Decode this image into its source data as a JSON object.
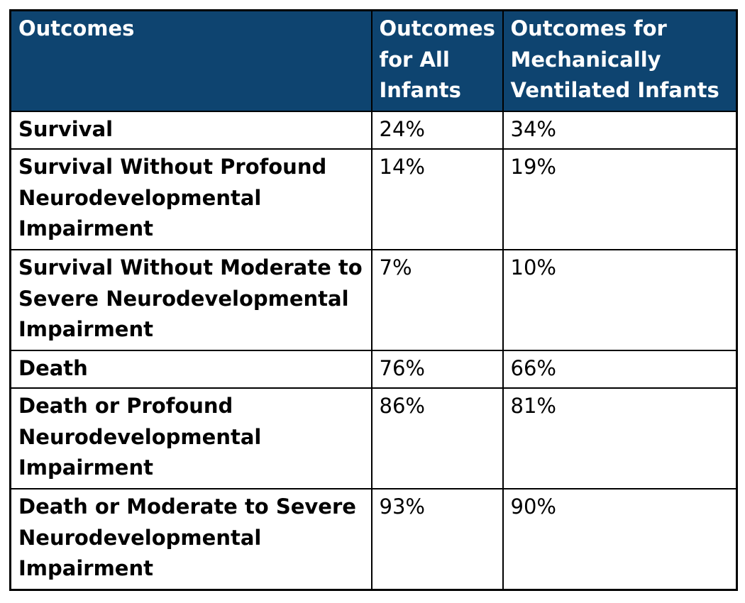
{
  "colors": {
    "header_bg": "#0E4470",
    "header_text": "#FFFFFF",
    "body_text": "#000000",
    "border": "#000000"
  },
  "chart_data": {
    "type": "table",
    "columns": [
      {
        "label": "Outcomes"
      },
      {
        "label": "Outcomes for All Infants"
      },
      {
        "label": "Outcomes for Mechanically Ventilated Infants"
      }
    ],
    "rows": [
      {
        "outcome": "Survival",
        "all_infants": "24%",
        "mechanically_ventilated": "34%"
      },
      {
        "outcome": "Survival Without Profound Neurodevelopmental Impairment",
        "all_infants": "14%",
        "mechanically_ventilated": "19%"
      },
      {
        "outcome": "Survival Without Moderate to Severe Neurodevelopmental Impairment",
        "all_infants": "7%",
        "mechanically_ventilated": "10%"
      },
      {
        "outcome": "Death",
        "all_infants": "76%",
        "mechanically_ventilated": "66%"
      },
      {
        "outcome": "Death or Profound Neurodevelopmental Impairment",
        "all_infants": "86%",
        "mechanically_ventilated": "81%"
      },
      {
        "outcome": "Death or Moderate to Severe Neurodevelopmental Impairment",
        "all_infants": "93%",
        "mechanically_ventilated": "90%"
      }
    ]
  }
}
